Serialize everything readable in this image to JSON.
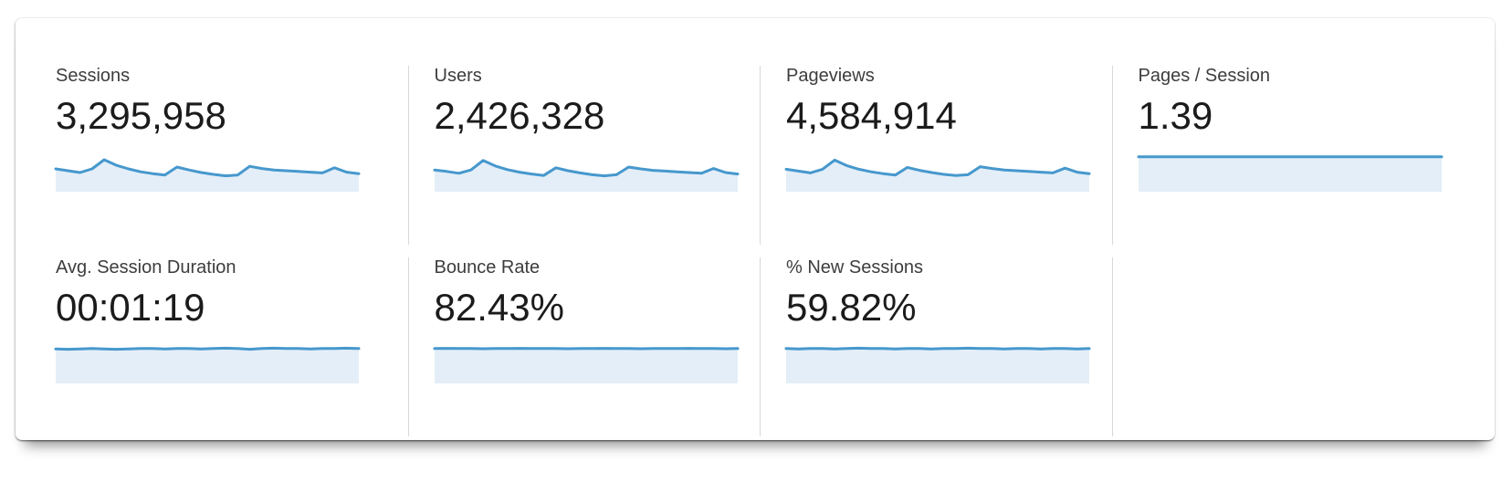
{
  "colors": {
    "spark_line": "#4698cd",
    "spark_fill": "#e4eef8",
    "label_text": "#3d3d3d",
    "value_text": "#1b1b1b",
    "divider": "#d8d8d8",
    "panel_bg": "#ffffff"
  },
  "dashboard": {
    "metrics": [
      {
        "label": "Sessions",
        "value": "3,295,958"
      },
      {
        "label": "Users",
        "value": "2,426,328"
      },
      {
        "label": "Pageviews",
        "value": "4,584,914"
      },
      {
        "label": "Pages / Session",
        "value": "1.39"
      },
      {
        "label": "Avg. Session Duration",
        "value": "00:01:19"
      },
      {
        "label": "Bounce Rate",
        "value": "82.43%"
      },
      {
        "label": "% New Sessions",
        "value": "59.82%"
      }
    ]
  },
  "chart_data": [
    {
      "type": "area",
      "title": "Sessions sparkline",
      "axes": "hidden",
      "normalized": true,
      "values": [
        0.55,
        0.5,
        0.45,
        0.55,
        0.8,
        0.65,
        0.55,
        0.47,
        0.42,
        0.38,
        0.6,
        0.52,
        0.45,
        0.4,
        0.36,
        0.38,
        0.62,
        0.56,
        0.52,
        0.5,
        0.48,
        0.46,
        0.44,
        0.58,
        0.46,
        0.42
      ]
    },
    {
      "type": "area",
      "title": "Users sparkline",
      "axes": "hidden",
      "normalized": true,
      "values": [
        0.52,
        0.48,
        0.43,
        0.52,
        0.78,
        0.63,
        0.53,
        0.46,
        0.41,
        0.37,
        0.58,
        0.5,
        0.44,
        0.39,
        0.36,
        0.39,
        0.6,
        0.55,
        0.51,
        0.49,
        0.47,
        0.45,
        0.43,
        0.56,
        0.45,
        0.41
      ]
    },
    {
      "type": "area",
      "title": "Pageviews sparkline",
      "axes": "hidden",
      "normalized": true,
      "values": [
        0.54,
        0.49,
        0.44,
        0.54,
        0.79,
        0.64,
        0.54,
        0.47,
        0.42,
        0.38,
        0.59,
        0.51,
        0.45,
        0.4,
        0.37,
        0.39,
        0.61,
        0.56,
        0.52,
        0.5,
        0.48,
        0.46,
        0.44,
        0.57,
        0.46,
        0.42
      ]
    },
    {
      "type": "area",
      "title": "Pages / Session sparkline",
      "axes": "hidden",
      "normalized": true,
      "values": [
        0.88,
        0.88,
        0.88,
        0.88,
        0.88,
        0.88,
        0.88,
        0.88,
        0.88,
        0.88,
        0.88,
        0.88,
        0.88,
        0.88,
        0.88,
        0.88,
        0.88,
        0.88,
        0.88,
        0.88,
        0.88,
        0.88,
        0.88,
        0.88,
        0.88,
        0.88
      ]
    },
    {
      "type": "area",
      "title": "Avg. Session Duration sparkline",
      "axes": "hidden",
      "normalized": true,
      "values": [
        0.87,
        0.86,
        0.87,
        0.88,
        0.87,
        0.86,
        0.87,
        0.88,
        0.88,
        0.87,
        0.88,
        0.88,
        0.87,
        0.88,
        0.89,
        0.88,
        0.86,
        0.88,
        0.89,
        0.88,
        0.88,
        0.87,
        0.88,
        0.88,
        0.89,
        0.88
      ]
    },
    {
      "type": "area",
      "title": "Bounce Rate sparkline",
      "axes": "hidden",
      "normalized": true,
      "values": [
        0.88,
        0.885,
        0.88,
        0.88,
        0.875,
        0.88,
        0.88,
        0.885,
        0.88,
        0.88,
        0.88,
        0.875,
        0.88,
        0.88,
        0.885,
        0.88,
        0.88,
        0.875,
        0.88,
        0.88,
        0.88,
        0.885,
        0.88,
        0.88,
        0.875,
        0.88
      ]
    },
    {
      "type": "area",
      "title": "% New Sessions sparkline",
      "axes": "hidden",
      "normalized": true,
      "values": [
        0.88,
        0.87,
        0.88,
        0.88,
        0.87,
        0.88,
        0.89,
        0.88,
        0.88,
        0.87,
        0.88,
        0.88,
        0.87,
        0.88,
        0.88,
        0.89,
        0.88,
        0.88,
        0.87,
        0.88,
        0.88,
        0.87,
        0.88,
        0.88,
        0.87,
        0.88
      ]
    }
  ]
}
